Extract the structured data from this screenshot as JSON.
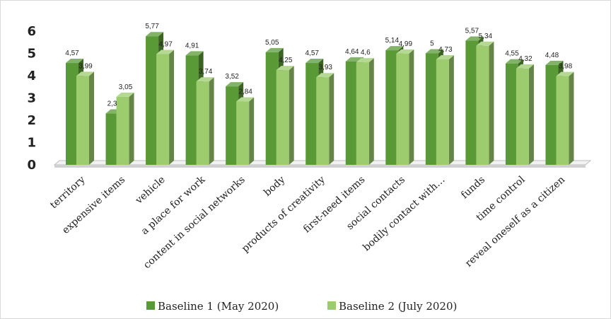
{
  "chart_data": {
    "type": "bar",
    "title": "",
    "xlabel": "",
    "ylabel": "",
    "ylim": [
      0,
      6
    ],
    "y_ticks": [
      "0",
      "1",
      "2",
      "3",
      "4",
      "5",
      "6"
    ],
    "grid": false,
    "legend_position": "bottom",
    "categories": [
      "territory",
      "expensive items",
      "vehicle",
      "a place for work",
      "content in social networks",
      "body",
      "products of creativity",
      "first-need items",
      "social contacts",
      "bodily contact with…",
      "funds",
      "time control",
      "reveal oneself as a citizen"
    ],
    "series": [
      {
        "name": "Baseline 1 (May 2020)",
        "color": "#5a9a36",
        "values": [
          4.57,
          2.3,
          5.77,
          4.91,
          3.52,
          5.05,
          4.57,
          4.64,
          5.14,
          5,
          5.57,
          4.55,
          4.48
        ],
        "labels": [
          "4,57",
          "2,3",
          "5,77",
          "4,91",
          "3,52",
          "5,05",
          "4,57",
          "4,64",
          "5,14",
          "5",
          "5,57",
          "4,55",
          "4,48"
        ]
      },
      {
        "name": "Baseline 2 (July 2020)",
        "color": "#9ccc6e",
        "values": [
          3.99,
          3.05,
          4.97,
          3.74,
          2.84,
          4.25,
          3.93,
          4.6,
          4.99,
          4.73,
          5.34,
          4.32,
          3.98
        ],
        "labels": [
          "3,99",
          "3,05",
          "4,97",
          "3,74",
          "2,84",
          "4,25",
          "3,93",
          "4,6",
          "4,99",
          "4,73",
          "5,34",
          "4,32",
          "3,98"
        ]
      }
    ]
  }
}
